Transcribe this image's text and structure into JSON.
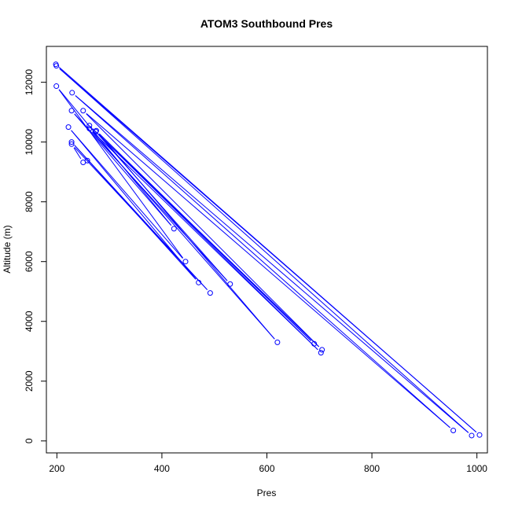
{
  "chart_data": {
    "type": "scatter",
    "title": "ATOM3 Southbound Pres",
    "xlabel": "Pres",
    "ylabel": "Altitude (m)",
    "xlim": [
      180,
      1020
    ],
    "ylim": [
      -400,
      13200
    ],
    "x_ticks": [
      200,
      400,
      600,
      800,
      1000
    ],
    "x_tick_labels": [
      "200",
      "400",
      "600",
      "800",
      "1000"
    ],
    "y_ticks": [
      0,
      2000,
      4000,
      6000,
      8000,
      10000,
      12000
    ],
    "y_tick_labels": [
      "0",
      "2000",
      "4000",
      "6000",
      "8000",
      "10000",
      "12000"
    ],
    "grid": false,
    "legend": "none",
    "series": [
      {
        "color": "#0000ff",
        "marker": "open-circle",
        "line": "connected",
        "points": [
          {
            "x": 198,
            "y": 12600
          },
          {
            "x": 1005,
            "y": 200
          },
          {
            "x": 199,
            "y": 12550
          },
          {
            "x": 990,
            "y": 180
          },
          {
            "x": 229,
            "y": 11650
          },
          {
            "x": 955,
            "y": 350
          },
          {
            "x": 250,
            "y": 11050
          },
          {
            "x": 705,
            "y": 3050
          },
          {
            "x": 262,
            "y": 10550
          },
          {
            "x": 703,
            "y": 2950
          },
          {
            "x": 262,
            "y": 10450
          },
          {
            "x": 620,
            "y": 3300
          },
          {
            "x": 275,
            "y": 10380
          },
          {
            "x": 690,
            "y": 3250
          },
          {
            "x": 274,
            "y": 10350
          },
          {
            "x": 530,
            "y": 5250
          },
          {
            "x": 228,
            "y": 11050
          },
          {
            "x": 423,
            "y": 7100
          },
          {
            "x": 199,
            "y": 11870
          },
          {
            "x": 445,
            "y": 6000
          },
          {
            "x": 222,
            "y": 10500
          },
          {
            "x": 470,
            "y": 5300
          },
          {
            "x": 228,
            "y": 10000
          },
          {
            "x": 492,
            "y": 4950
          },
          {
            "x": 228,
            "y": 9930
          },
          {
            "x": 250,
            "y": 9320
          },
          {
            "x": 258,
            "y": 9380
          }
        ]
      }
    ]
  }
}
